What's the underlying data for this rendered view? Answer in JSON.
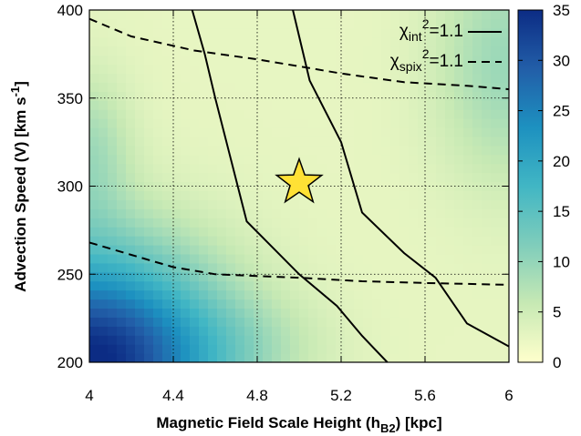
{
  "chart_data": {
    "type": "heatmap",
    "xlabel": {
      "main": "Magnetic Field Scale Height (h",
      "sub": "B2",
      "tail": ") [kpc]"
    },
    "ylabel": {
      "main": "Advection Speed (V) [km s",
      "sup": "-1",
      "tail": "]"
    },
    "xlim": [
      4,
      6
    ],
    "ylim": [
      200,
      400
    ],
    "x_ticks": [
      4,
      4.4,
      4.8,
      5.2,
      5.6,
      6
    ],
    "x_tick_labels": [
      "4",
      "4.4",
      "4.8",
      "5.2",
      "5.6",
      "6"
    ],
    "y_ticks": [
      200,
      250,
      300,
      350,
      400
    ],
    "y_tick_labels": [
      "200",
      "250",
      "300",
      "350",
      "400"
    ],
    "grid": true,
    "colorbar": {
      "range": [
        0,
        35
      ],
      "ticks": [
        0,
        5,
        10,
        15,
        20,
        25,
        30,
        35
      ],
      "tick_labels": [
        "0",
        "5",
        "10",
        "15",
        "20",
        "25",
        "30",
        "35"
      ],
      "colors": [
        "#ffffcc",
        "#c7e9b4",
        "#7fcdbb",
        "#41b6c4",
        "#1d91c0",
        "#225ea8",
        "#0c2c84"
      ]
    },
    "minimum_marker": {
      "x": 5.0,
      "y": 302,
      "symbol": "star",
      "color": "#ffe135"
    },
    "legend": {
      "position": "top-right",
      "entries": [
        {
          "chi": "χ",
          "sub": "int",
          "sup": "2",
          "value": "=1.1",
          "style": "solid"
        },
        {
          "chi": "χ",
          "sub": "spix",
          "sup": "2",
          "value": "=1.1",
          "style": "dashed"
        }
      ]
    },
    "series": [
      {
        "style": "solid",
        "segments": [
          [
            [
              4.49,
              400
            ],
            [
              4.55,
              375
            ],
            [
              4.6,
              350
            ],
            [
              4.75,
              280
            ],
            [
              5.0,
              250
            ],
            [
              5.18,
              232
            ],
            [
              5.3,
              215
            ],
            [
              5.42,
              200
            ]
          ],
          [
            [
              4.97,
              400
            ],
            [
              5.05,
              360
            ],
            [
              5.2,
              325
            ],
            [
              5.3,
              285
            ],
            [
              5.5,
              262
            ],
            [
              5.65,
              248
            ],
            [
              5.8,
              222
            ],
            [
              6.0,
              209
            ]
          ]
        ]
      },
      {
        "style": "dashed",
        "segments": [
          [
            [
              4.0,
              395
            ],
            [
              4.2,
              385
            ],
            [
              4.5,
              377
            ],
            [
              4.8,
              372
            ],
            [
              5.0,
              368
            ],
            [
              5.2,
              364
            ],
            [
              5.5,
              359
            ],
            [
              5.8,
              357
            ],
            [
              6.0,
              355
            ]
          ],
          [
            [
              4.0,
              268
            ],
            [
              4.2,
              261
            ],
            [
              4.4,
              254
            ],
            [
              4.6,
              250
            ],
            [
              4.8,
              249
            ],
            [
              5.0,
              248
            ],
            [
              5.3,
              246
            ],
            [
              5.6,
              245
            ],
            [
              6.0,
              244
            ]
          ]
        ]
      }
    ]
  }
}
